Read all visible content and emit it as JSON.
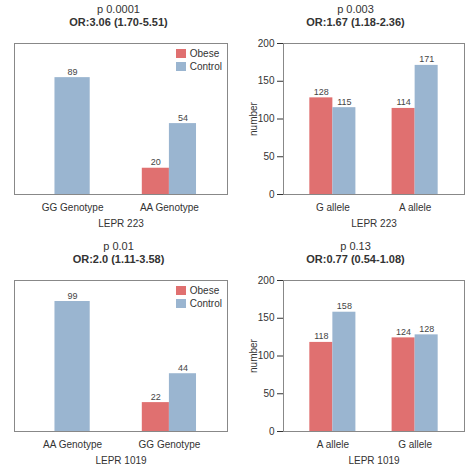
{
  "chart_data": [
    {
      "type": "bar",
      "title": "p 0.0001",
      "subtitle": "OR:3.06 (1.70-5.51)",
      "categories": [
        "GG Genotype",
        "AA Genotype"
      ],
      "series": [
        {
          "name": "Obese",
          "color": "#e07070",
          "values": [
            null,
            20
          ]
        },
        {
          "name": "Control",
          "color": "#9ab5d0",
          "values": [
            89,
            54
          ]
        }
      ],
      "xlabel": "LEPR 223",
      "ylim": [
        0,
        115
      ],
      "tick_labels": "x",
      "legend": "upper right",
      "data_labels": true
    },
    {
      "type": "bar",
      "title": "p 0.003",
      "subtitle": "OR:1.67 (1.18-2.36)",
      "categories": [
        "G allele",
        "A allele"
      ],
      "series": [
        {
          "name": "Obese",
          "color": "#e07070",
          "values": [
            128,
            114
          ]
        },
        {
          "name": "Control",
          "color": "#9ab5d0",
          "values": [
            115,
            171
          ]
        }
      ],
      "xlabel": "LEPR 223",
      "ylabel": "number",
      "ylim": [
        0,
        200
      ],
      "yticks": [
        0,
        50,
        100,
        150,
        200
      ],
      "data_labels": true
    },
    {
      "type": "bar",
      "title": "p 0.01",
      "subtitle": "OR:2.0 (1.11-3.58)",
      "categories": [
        "AA Genotype",
        "GG Genotype"
      ],
      "series": [
        {
          "name": "Obese",
          "color": "#e07070",
          "values": [
            null,
            22
          ]
        },
        {
          "name": "Control",
          "color": "#9ab5d0",
          "values": [
            99,
            44
          ]
        }
      ],
      "xlabel": "LEPR 1019",
      "ylim": [
        0,
        115
      ],
      "tick_labels": "x",
      "legend": "upper right",
      "data_labels": true
    },
    {
      "type": "bar",
      "title": "p 0.13",
      "subtitle": "OR:0.77 (0.54-1.08)",
      "categories": [
        "A allele",
        "G allele"
      ],
      "series": [
        {
          "name": "Obese",
          "color": "#e07070",
          "values": [
            118,
            124
          ]
        },
        {
          "name": "Control",
          "color": "#9ab5d0",
          "values": [
            158,
            128
          ]
        }
      ],
      "xlabel": "LEPR 1019",
      "ylabel": "number",
      "ylim": [
        0,
        200
      ],
      "yticks": [
        0,
        50,
        100,
        150,
        200
      ],
      "data_labels": true
    }
  ]
}
